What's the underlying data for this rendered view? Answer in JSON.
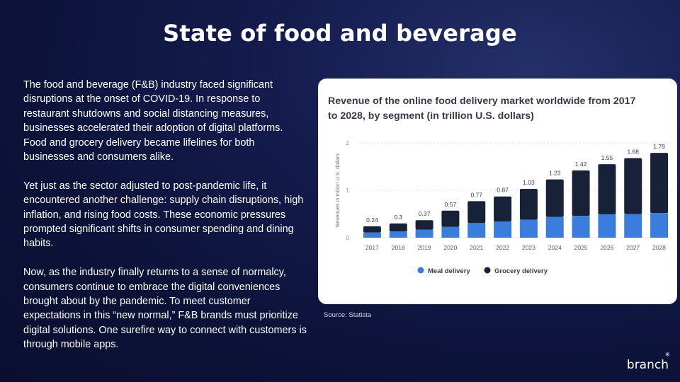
{
  "slide": {
    "title": "State of food and beverage",
    "paragraphs": [
      "The food and beverage (F&B) industry faced significant disruptions at the onset of COVID-19. In response to restaurant shutdowns and social distancing measures, businesses accelerated their adoption of digital platforms. Food and grocery delivery became lifelines for both businesses and consumers alike.",
      "Yet just as the sector adjusted to post-pandemic life, it encountered another challenge: supply chain disruptions, high inflation, and rising food costs. These economic pressures prompted significant shifts in consumer spending and dining habits.",
      "Now, as the industry finally returns to a sense of normalcy, consumers continue to embrace the digital conveniences brought about by the pandemic. To meet customer expectations in this “new normal,” F&B brands must prioritize digital solutions. One surefire way to connect with customers is through mobile apps."
    ],
    "source": "Source: Statista",
    "brand": "branch"
  },
  "chart_data": {
    "type": "bar",
    "stacked": true,
    "title": "Revenue of the online food delivery market worldwide from 2017 to 2028, by segment (in trillion U.S. dollars)",
    "xlabel": "",
    "ylabel": "Revenues in trillion U.S. dollars",
    "ylim": [
      0,
      2
    ],
    "yticks": [
      "0",
      "1",
      "2"
    ],
    "grid": true,
    "legend_position": "bottom",
    "categories": [
      "2017",
      "2018",
      "2019",
      "2020",
      "2021",
      "2022",
      "2023",
      "2024",
      "2025",
      "2026",
      "2027",
      "2028"
    ],
    "totals_labels": [
      "0.24",
      "0.3",
      "0.37",
      "0.57",
      "0.77",
      "0.87",
      "1.03",
      "1.23",
      "1.42",
      "1.55",
      "1.68",
      "1.79"
    ],
    "series": [
      {
        "name": "Meal delivery",
        "color": "#3b7ddd",
        "values": [
          0.11,
          0.13,
          0.17,
          0.23,
          0.31,
          0.34,
          0.38,
          0.44,
          0.46,
          0.49,
          0.5,
          0.52
        ]
      },
      {
        "name": "Grocery delivery",
        "color": "#172238",
        "values": [
          0.13,
          0.17,
          0.2,
          0.34,
          0.46,
          0.53,
          0.65,
          0.79,
          0.96,
          1.06,
          1.18,
          1.27
        ]
      }
    ]
  }
}
